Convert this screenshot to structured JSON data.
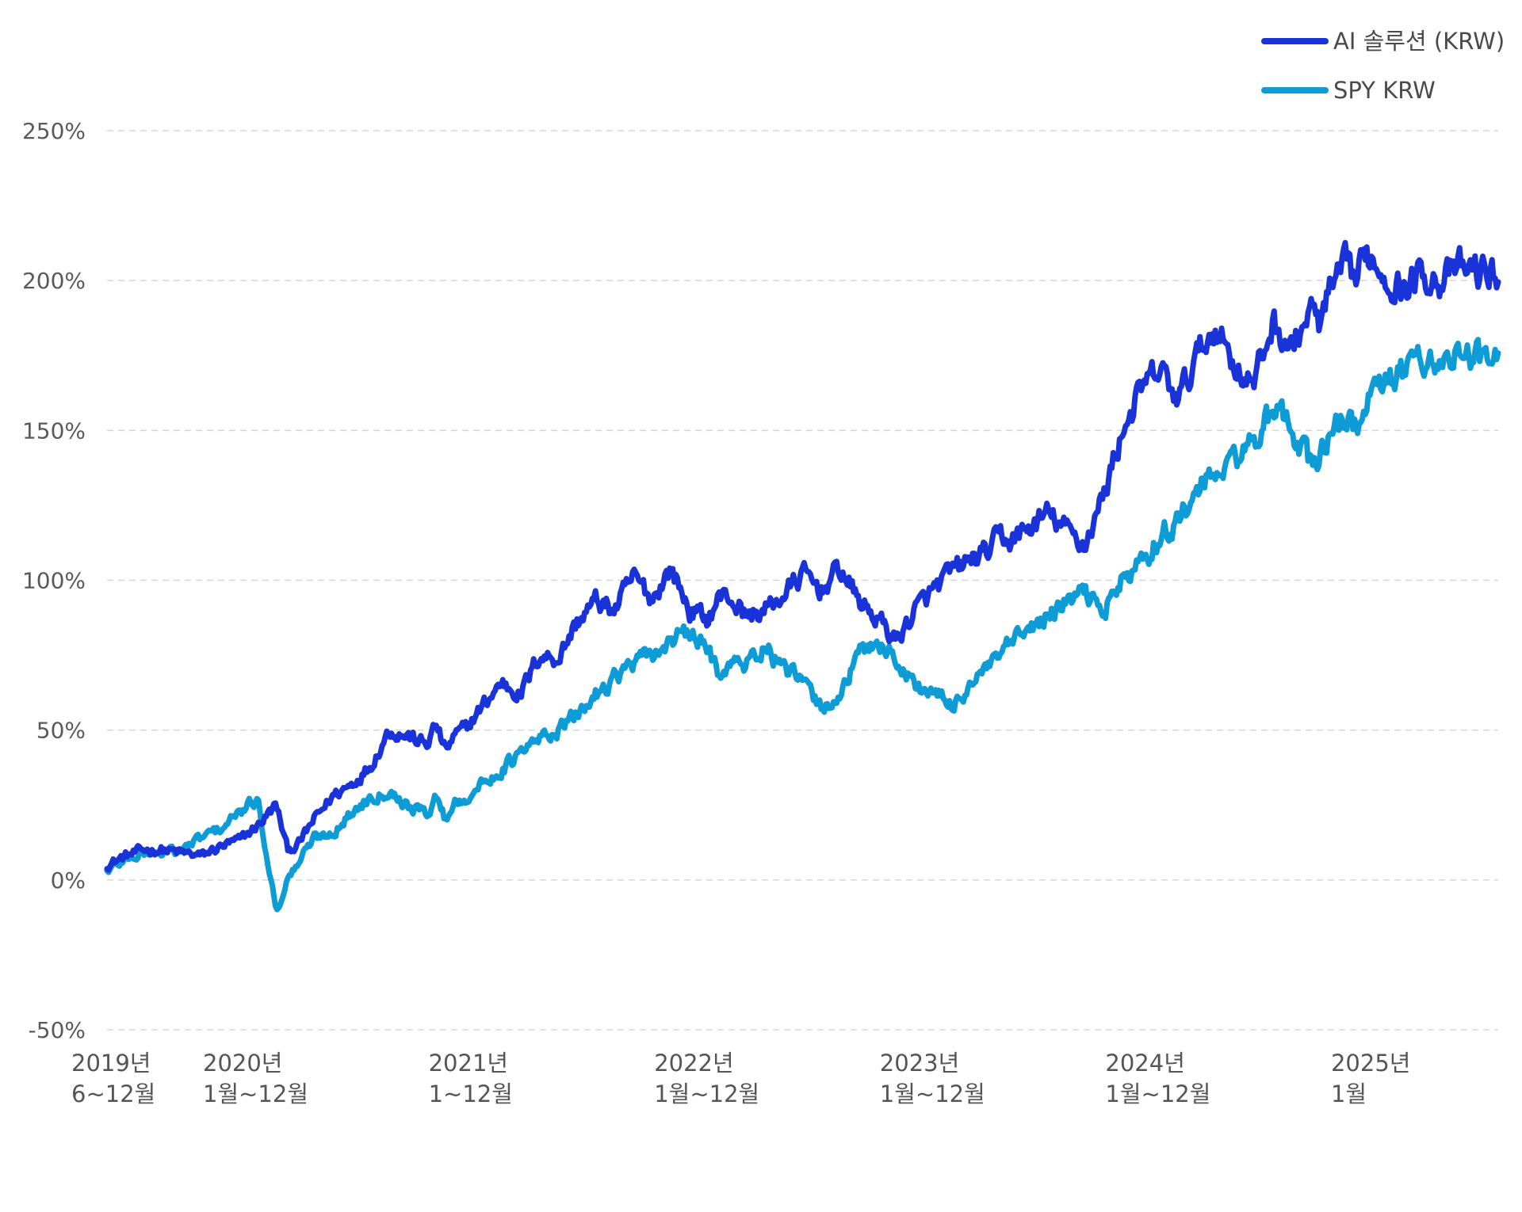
{
  "chart_data": {
    "type": "line",
    "ylim": [
      -50,
      250
    ],
    "y_ticks": [
      -50,
      0,
      50,
      100,
      150,
      200,
      250
    ],
    "y_tick_labels": [
      "-50%",
      "0%",
      "50%",
      "100%",
      "150%",
      "200%",
      "250%"
    ],
    "grid": true,
    "legend_position": "top-right",
    "x_axis_labels": [
      {
        "line1": "2019년",
        "line2": "6~12월",
        "t": 0
      },
      {
        "line1": "2020년",
        "line2": "1월~12월",
        "t": 7
      },
      {
        "line1": "2021년",
        "line2": "1~12월",
        "t": 19
      },
      {
        "line1": "2022년",
        "line2": "1월~12월",
        "t": 31
      },
      {
        "line1": "2023년",
        "line2": "1월~12월",
        "t": 43
      },
      {
        "line1": "2024년",
        "line2": "1월~12월",
        "t": 55
      },
      {
        "line1": "2025년",
        "line2": "1월",
        "t": 67
      }
    ],
    "x_range": [
      0,
      74
    ],
    "series": [
      {
        "name": "AI 솔루션 (KRW)",
        "color": "#1a33d9",
        "t": [
          0,
          1,
          2,
          3,
          4,
          5,
          6,
          7,
          8,
          9,
          9.6,
          10.2,
          11,
          12,
          13,
          14,
          15,
          16,
          17,
          17.5,
          18,
          18.5,
          19,
          20,
          21,
          22,
          23,
          24,
          25,
          26,
          27,
          28,
          29,
          30,
          31,
          32,
          32.5,
          33,
          34,
          35,
          36,
          37,
          38,
          39,
          40,
          41,
          42,
          43,
          44,
          45,
          46,
          47,
          47.5,
          48,
          49,
          50,
          51,
          52,
          53,
          54,
          55,
          56,
          57,
          58,
          59,
          60,
          61,
          62,
          63,
          64,
          64.5,
          65,
          66,
          66.5,
          67,
          68,
          69,
          70,
          71,
          72,
          73,
          74
        ],
        "values": [
          5,
          8,
          10,
          10,
          9,
          8,
          11,
          13,
          18,
          25,
          10,
          12,
          20,
          28,
          32,
          38,
          50,
          48,
          45,
          52,
          43,
          48,
          50,
          58,
          66,
          62,
          75,
          74,
          86,
          93,
          90,
          101,
          94,
          104,
          90,
          87,
          94,
          95,
          88,
          90,
          95,
          102,
          97,
          104,
          93,
          87,
          80,
          90,
          97,
          103,
          107,
          110,
          115,
          113,
          117,
          122,
          117,
          112,
          128,
          150,
          163,
          170,
          160,
          175,
          185,
          172,
          165,
          186,
          177,
          190,
          185,
          195,
          205,
          200,
          210,
          202,
          197,
          203,
          200,
          204,
          203,
          202
        ]
      },
      {
        "name": "SPY KRW",
        "color": "#0d9cd6",
        "t": [
          0,
          1,
          2,
          3,
          4,
          5,
          6,
          7,
          8,
          9,
          9.6,
          10.2,
          11,
          12,
          13,
          14,
          15,
          16,
          17,
          17.5,
          18,
          18.5,
          19,
          20,
          21,
          22,
          23,
          24,
          25,
          26,
          27,
          28,
          29,
          30,
          31,
          32,
          32.5,
          33,
          34,
          35,
          36,
          37,
          38,
          39,
          40,
          41,
          42,
          43,
          44,
          45,
          46,
          47,
          47.5,
          48,
          49,
          50,
          51,
          52,
          53,
          54,
          55,
          56,
          57,
          58,
          59,
          60,
          61,
          62,
          63,
          64,
          64.5,
          65,
          66,
          66.5,
          67,
          68,
          69,
          70,
          71,
          72,
          73,
          74
        ],
        "values": [
          3,
          7,
          9,
          9,
          10,
          14,
          17,
          22,
          27,
          -10,
          0,
          6,
          14,
          16,
          22,
          28,
          30,
          25,
          22,
          28,
          20,
          26,
          27,
          32,
          37,
          42,
          47,
          50,
          55,
          62,
          68,
          72,
          75,
          80,
          82,
          76,
          70,
          72,
          72,
          78,
          70,
          66,
          57,
          62,
          75,
          80,
          73,
          65,
          62,
          58,
          66,
          71,
          75,
          78,
          83,
          88,
          92,
          96,
          90,
          100,
          105,
          115,
          120,
          130,
          135,
          140,
          147,
          155,
          152,
          138,
          142,
          148,
          155,
          150,
          160,
          165,
          170,
          175,
          172,
          176,
          174,
          172
        ]
      }
    ]
  }
}
